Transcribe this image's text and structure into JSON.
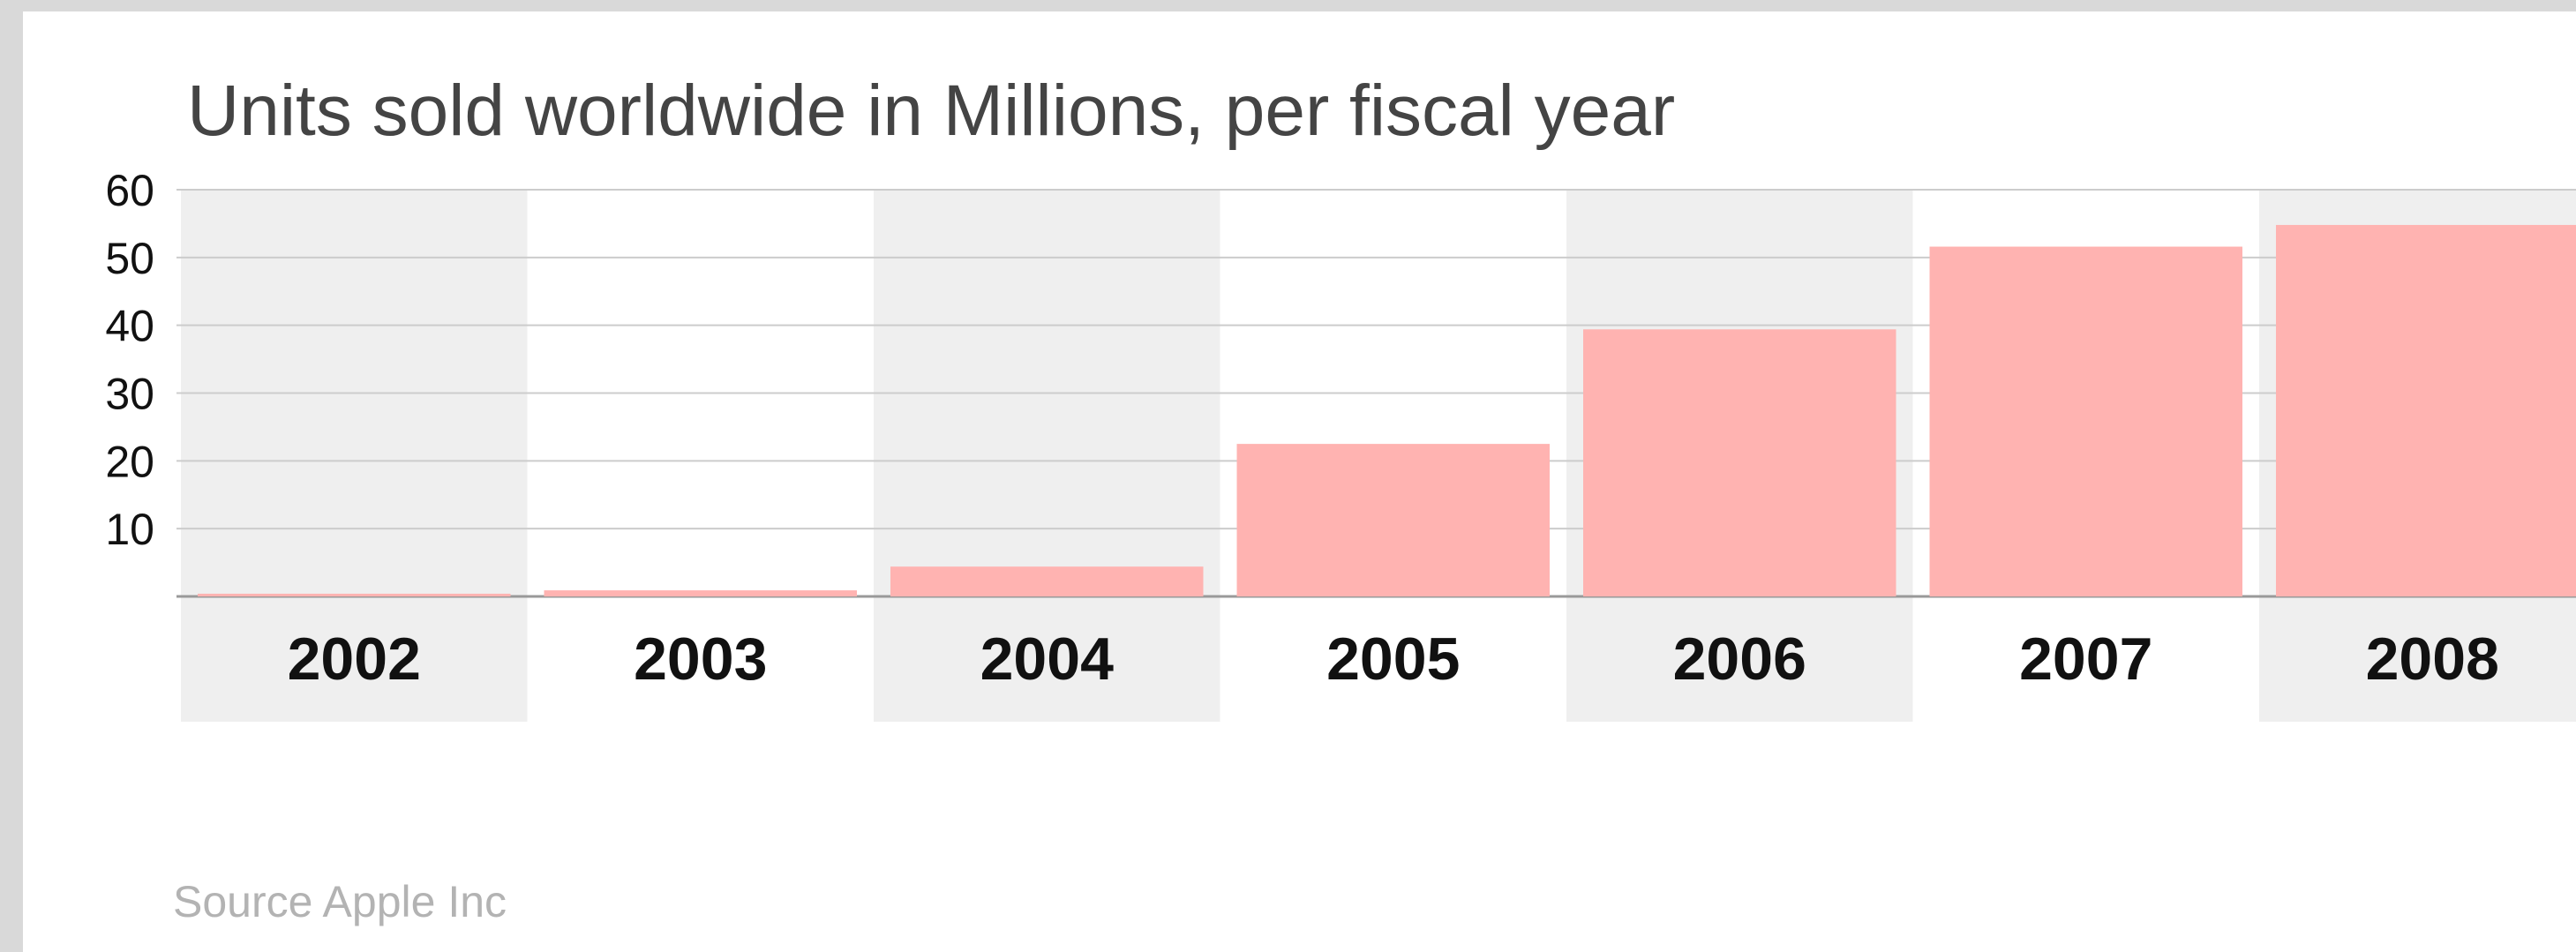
{
  "chart_data": {
    "type": "bar",
    "title": "Units sold worldwide in Millions, per fiscal year",
    "source": "Source Apple Inc",
    "categories": [
      "2002",
      "2003",
      "2004",
      "2005",
      "2006",
      "2007",
      "2008"
    ],
    "values": [
      0.4,
      0.9,
      4.4,
      22.5,
      39.4,
      51.6,
      54.8
    ],
    "ylim": [
      0,
      60
    ],
    "yticks": [
      10,
      20,
      30,
      40,
      50,
      60
    ],
    "grid": true,
    "colors": {
      "bar": "#ffb3b1",
      "band": "#efefef",
      "grid": "#cccccc",
      "axis": "#999999"
    }
  }
}
